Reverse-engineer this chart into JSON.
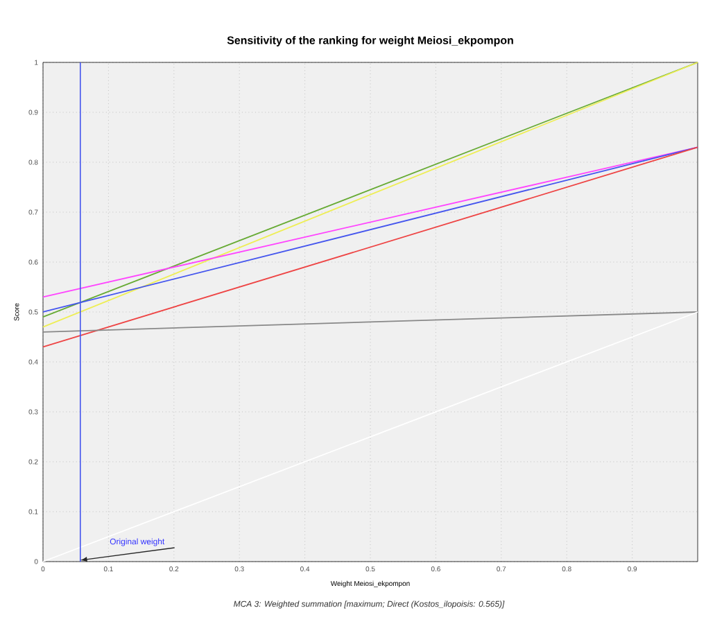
{
  "chart_data": {
    "type": "line",
    "title": "Sensitivity of the ranking for weight Meiosi_ekpompon",
    "xlabel": "Weight Meiosi_ekpompon",
    "ylabel": "Score",
    "x": [
      0,
      1
    ],
    "series": [
      {
        "color": "#66aa33",
        "values": [
          0.49,
          1.0
        ]
      },
      {
        "color": "#eeee55",
        "values": [
          0.47,
          1.0
        ]
      },
      {
        "color": "#ff44ff",
        "values": [
          0.53,
          0.83
        ]
      },
      {
        "color": "#4455ee",
        "values": [
          0.5,
          0.83
        ]
      },
      {
        "color": "#ee4444",
        "values": [
          0.43,
          0.83
        ]
      },
      {
        "color": "#888888",
        "values": [
          0.46,
          0.5
        ]
      },
      {
        "color": "#ffffff",
        "values": [
          0,
          0.5
        ]
      }
    ],
    "xlim": [
      0,
      1
    ],
    "ylim": [
      0,
      1
    ],
    "xticks": [
      0,
      0.1,
      0.2,
      0.3,
      0.4,
      0.5,
      0.6,
      0.7,
      0.8,
      0.9
    ],
    "yticks": [
      0,
      0.1,
      0.2,
      0.3,
      0.4,
      0.5,
      0.6,
      0.7,
      0.8,
      0.9,
      1
    ],
    "grid": true,
    "marker": "none",
    "line_style": "solid",
    "ref_lines": [
      {
        "axis": "x",
        "value": 0.057,
        "color": "#4455ee"
      }
    ],
    "annotations": [
      {
        "text": "Original weight",
        "x": 0.057,
        "y": 0
      },
      "MCA 3: Weighted summation [maximum; Direct (Kostos_ilopoisis: 0.565)]"
    ]
  }
}
